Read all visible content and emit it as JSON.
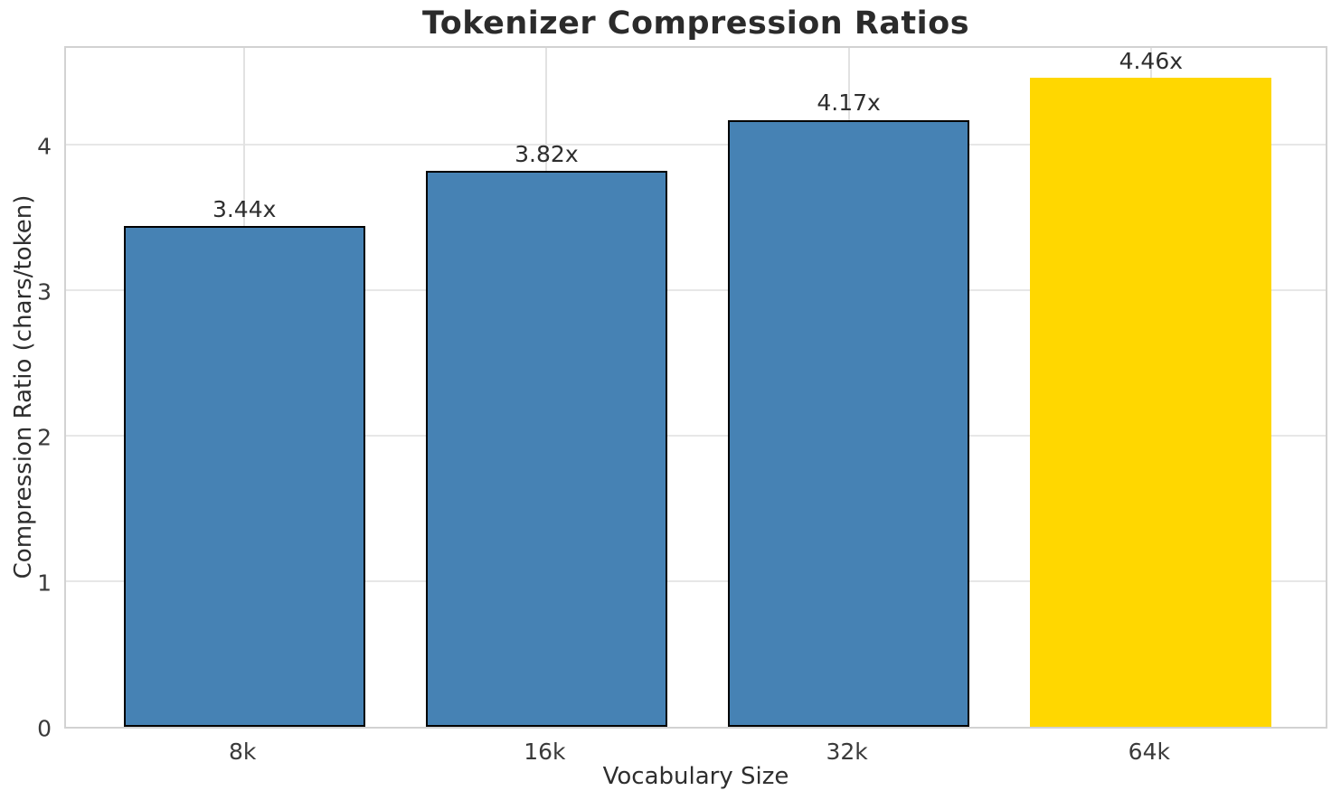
{
  "chart_data": {
    "type": "bar",
    "title": "Tokenizer Compression Ratios",
    "xlabel": "Vocabulary Size",
    "ylabel": "Compression Ratio (chars/token)",
    "categories": [
      "8k",
      "16k",
      "32k",
      "64k"
    ],
    "values": [
      3.44,
      3.82,
      4.17,
      4.46
    ],
    "bar_labels": [
      "3.44x",
      "3.82x",
      "4.17x",
      "4.46x"
    ],
    "yticks": [
      0,
      1,
      2,
      3,
      4
    ],
    "ylim": [
      0,
      4.69
    ],
    "xlim": [
      -0.59,
      3.59
    ],
    "bar_width_units": 0.8,
    "grid": true,
    "legend": "none",
    "colors": {
      "bar": "#4682B4",
      "highlight_bar": "#FFD700",
      "bar_edge": "#000000",
      "grid_line": "#e7e7e7",
      "spine": "#d2d2d2",
      "title_text": "#2b2b2b",
      "tick_text": "#3a3a3a",
      "label_text": "#2e2e2e"
    },
    "bar_colors": [
      "#4682B4",
      "#4682B4",
      "#4682B4",
      "#FFD700"
    ],
    "bar_edges": [
      "#000000",
      "#000000",
      "#000000",
      "none"
    ]
  }
}
